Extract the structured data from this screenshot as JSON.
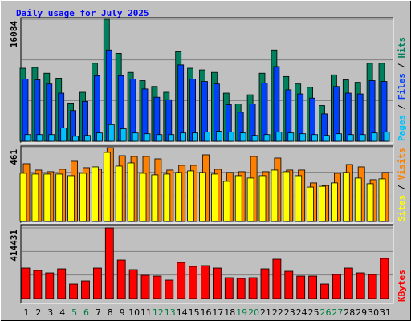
{
  "chart_data": [
    {
      "type": "bar",
      "title": "Daily usage for July 2025",
      "title_color": "#0000ff",
      "ylim": [
        0,
        16084
      ],
      "yticks": [
        16084
      ],
      "series": [
        {
          "name": "Pages",
          "color": "#00c0ff",
          "values": [
            875,
            875,
            875,
            1750,
            656,
            766,
            1094,
            2188,
            1641,
            1094,
            984,
            875,
            875,
            1094,
            1094,
            1203,
            1313,
            1203,
            1094,
            766,
            875,
            1203,
            1094,
            984,
            875,
            766,
            984,
            875,
            875,
            1094,
            1203
          ]
        },
        {
          "name": "Files",
          "color": "#0040ff",
          "values": [
            8206,
            8097,
            7550,
            6346,
            4048,
            5252,
            8644,
            12036,
            8644,
            8206,
            6893,
            5799,
            5471,
            10066,
            8206,
            7877,
            7550,
            4814,
            3830,
            4924,
            7659,
            9847,
            6784,
            6237,
            5690,
            3611,
            7221,
            6346,
            6237,
            7987,
            7877
          ]
        },
        {
          "name": "Hits",
          "color": "#00805c",
          "values": [
            9628,
            9738,
            8972,
            8315,
            5033,
            6455,
            10285,
            16084,
            11598,
            9081,
            7987,
            7221,
            6455,
            11817,
            9628,
            9410,
            9081,
            6346,
            4924,
            6127,
            8972,
            12036,
            8534,
            7550,
            7112,
            4705,
            8753,
            8097,
            7768,
            10285,
            10285
          ]
        }
      ],
      "legend_separator": "/"
    },
    {
      "type": "bar",
      "ylim": [
        0,
        461
      ],
      "yticks": [
        461
      ],
      "series": [
        {
          "name": "Sites",
          "color": "#ffff00",
          "values": [
            301,
            296,
            296,
            296,
            286,
            301,
            341,
            431,
            346,
            366,
            301,
            291,
            296,
            306,
            316,
            306,
            296,
            251,
            286,
            271,
            286,
            321,
            311,
            286,
            215,
            220,
            241,
            306,
            271,
            236,
            266
          ]
        },
        {
          "name": "Visits",
          "color": "#ff8000",
          "values": [
            361,
            321,
            311,
            326,
            376,
            336,
            326,
            461,
            411,
            406,
            406,
            391,
            321,
            351,
            351,
            416,
            326,
            306,
            311,
            406,
            311,
            396,
            321,
            321,
            241,
            225,
            301,
            356,
            341,
            261,
            306
          ]
        }
      ],
      "legend_separator": "/"
    },
    {
      "type": "bar",
      "ylim": [
        0,
        414431
      ],
      "yticks": [
        414431
      ],
      "series": [
        {
          "name": "KBytes",
          "color": "#ff0000",
          "values": [
            178959,
            164831,
            150702,
            174249,
            84770,
            103608,
            178959,
            414431,
            226054,
            169540,
            136574,
            131864,
            108318,
            211926,
            188378,
            193087,
            178959,
            122445,
            117736,
            122445,
            174249,
            230764,
            160122,
            131864,
            131864,
            84770,
            141283,
            178959,
            150702,
            141283,
            235473
          ]
        }
      ],
      "categories": [
        "1",
        "2",
        "3",
        "4",
        "5",
        "6",
        "7",
        "8",
        "9",
        "10",
        "11",
        "12",
        "13",
        "14",
        "15",
        "16",
        "17",
        "18",
        "19",
        "20",
        "21",
        "22",
        "23",
        "24",
        "25",
        "26",
        "27",
        "28",
        "29",
        "30",
        "31"
      ],
      "category_colors": [
        "#000000",
        "#000000",
        "#000000",
        "#000000",
        "#008040",
        "#008040",
        "#000000",
        "#000000",
        "#000000",
        "#000000",
        "#000000",
        "#008040",
        "#008040",
        "#000000",
        "#000000",
        "#000000",
        "#000000",
        "#000000",
        "#008040",
        "#008040",
        "#000000",
        "#000000",
        "#000000",
        "#000000",
        "#000000",
        "#008040",
        "#008040",
        "#000000",
        "#000000",
        "#000000",
        "#000000"
      ]
    }
  ]
}
